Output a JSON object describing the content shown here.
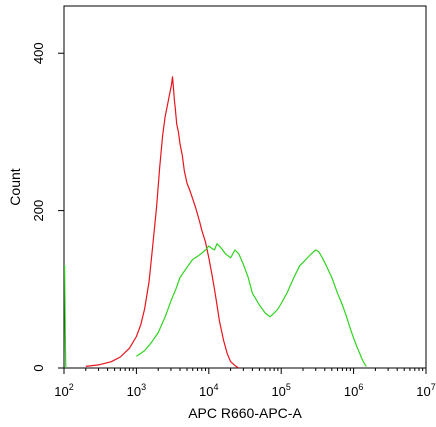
{
  "chart_data": {
    "type": "line",
    "title": "",
    "xlabel": "APC R660-APC-A",
    "ylabel": "Count",
    "x_scale": "log",
    "xlim": [
      100,
      10000000
    ],
    "ylim": [
      0,
      460
    ],
    "x_ticks": [
      {
        "value": 100,
        "base": "10",
        "exp": "2"
      },
      {
        "value": 1000,
        "base": "10",
        "exp": "3"
      },
      {
        "value": 10000,
        "base": "10",
        "exp": "4"
      },
      {
        "value": 100000,
        "base": "10",
        "exp": "5"
      },
      {
        "value": 1000000,
        "base": "10",
        "exp": "6"
      },
      {
        "value": 10000000,
        "base": "10",
        "exp": "7"
      }
    ],
    "y_ticks": [
      {
        "value": 0,
        "label": "0"
      },
      {
        "value": 200,
        "label": "200"
      },
      {
        "value": 400,
        "label": "400"
      }
    ],
    "grid": false,
    "legend": "none",
    "series": [
      {
        "color": "#e8141c",
        "x": [
          200,
          300,
          450,
          600,
          800,
          1000,
          1150,
          1300,
          1500,
          1700,
          1900,
          2100,
          2300,
          2500,
          2700,
          2900,
          3050,
          3150,
          3250,
          3350,
          3450,
          3600,
          3800,
          4000,
          4300,
          4600,
          5000,
          5500,
          6000,
          6500,
          7000,
          7500,
          8000,
          9000,
          10000,
          11000,
          12000,
          13000,
          14000,
          16000,
          18000,
          20000,
          23000,
          26000
        ],
        "y": [
          2,
          4,
          8,
          14,
          25,
          40,
          55,
          75,
          110,
          160,
          205,
          255,
          295,
          320,
          335,
          350,
          360,
          370,
          355,
          340,
          330,
          310,
          300,
          285,
          270,
          250,
          235,
          225,
          215,
          205,
          195,
          185,
          175,
          160,
          140,
          120,
          100,
          80,
          60,
          35,
          18,
          8,
          3,
          0
        ]
      },
      {
        "color": "#2fd41e",
        "x": [
          1000,
          1300,
          1600,
          2000,
          2500,
          3000,
          3500,
          4000,
          5000,
          6000,
          7000,
          8000,
          9000,
          10000,
          11000,
          12000,
          13000,
          15000,
          17000,
          20000,
          23000,
          26000,
          30000,
          35000,
          40000,
          50000,
          60000,
          70000,
          80000,
          90000,
          100000,
          120000,
          150000,
          180000,
          220000,
          260000,
          300000,
          330000,
          370000,
          420000,
          500000,
          600000,
          700000,
          800000,
          900000,
          1000000,
          1100000,
          1200000,
          1300000,
          1400000,
          1500000
        ],
        "y": [
          15,
          22,
          32,
          45,
          65,
          85,
          100,
          115,
          128,
          138,
          142,
          146,
          150,
          155,
          152,
          150,
          158,
          152,
          145,
          140,
          150,
          145,
          132,
          115,
          95,
          80,
          70,
          65,
          70,
          75,
          82,
          95,
          115,
          130,
          138,
          145,
          150,
          148,
          140,
          130,
          115,
          95,
          80,
          65,
          50,
          38,
          28,
          20,
          12,
          6,
          2
        ]
      },
      {
        "color": "#2fd41e",
        "x": [
          100,
          102,
          104,
          106
        ],
        "y": [
          130,
          130,
          50,
          0
        ]
      }
    ]
  }
}
